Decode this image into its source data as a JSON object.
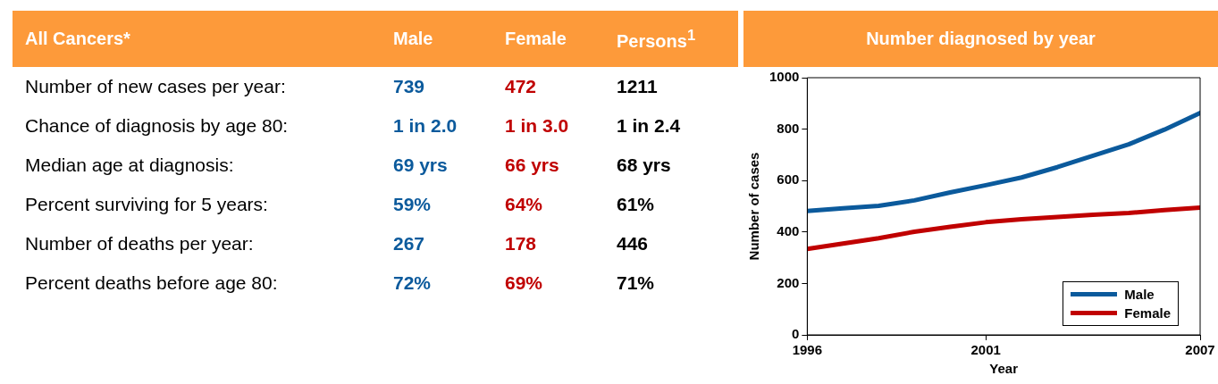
{
  "chart_data": [
    {
      "type": "other",
      "title": "All Cancers*",
      "annotations": [
        "Male",
        "Female",
        "Persons$^{1}$",
        "Number of new cases per year:",
        "739",
        "472",
        "1211",
        "Chance of diagnosis by age 80:",
        "1 in 2.0",
        "1 in 3.0",
        "1 in 2.4",
        "Median age at diagnosis:",
        "69 yrs",
        "66 yrs",
        "68 yrs",
        "Percent surviving for 5 years:",
        "59%",
        "64%",
        "61%",
        "Number of deaths per year:",
        "267",
        "178",
        "446",
        "Percent deaths before age 80:",
        "72%",
        "69%",
        "71%"
      ]
    },
    {
      "type": "line",
      "title": "Number diagnosed by year",
      "xlabel": "Year",
      "ylabel": "Number of cases",
      "x": [
        1996,
        1997,
        1998,
        1999,
        2000,
        2001,
        2002,
        2003,
        2004,
        2005,
        2006,
        2007
      ],
      "xlim": [
        1996,
        2007
      ],
      "xticks": [
        1996,
        2001,
        2007
      ],
      "ylim": [
        0,
        1000
      ],
      "yticks": [
        0,
        200,
        400,
        600,
        800,
        1000
      ],
      "grid": false,
      "legend": "bottom right",
      "marker": "none",
      "line_style": "solid",
      "series": [
        {
          "name": "Male",
          "color": "#0b5a9c",
          "values": [
            482,
            492,
            502,
            523,
            554,
            582,
            612,
            652,
            697,
            741,
            798,
            863
          ]
        },
        {
          "name": "Female",
          "color": "#c00000",
          "values": [
            334,
            355,
            376,
            401,
            420,
            438,
            450,
            458,
            467,
            474,
            485,
            495
          ]
        }
      ]
    }
  ]
}
